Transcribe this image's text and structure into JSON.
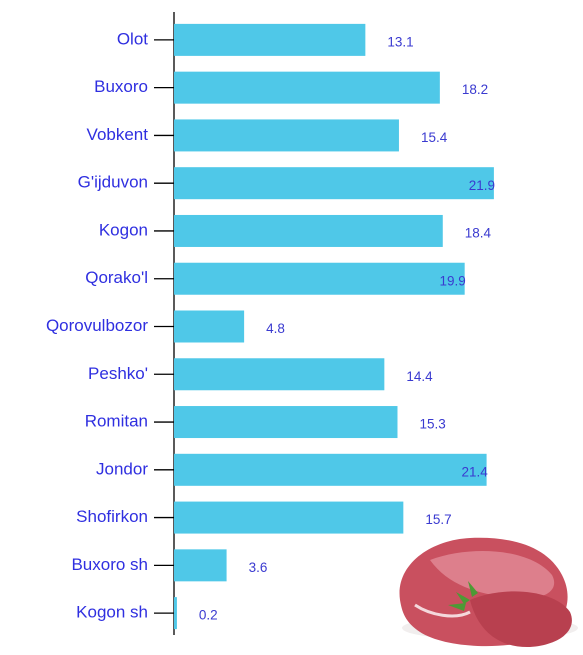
{
  "chart_data": {
    "type": "bar",
    "orientation": "horizontal",
    "categories": [
      "Olot",
      "Buxoro",
      "Vobkent",
      "G'ijduvon",
      "Kogon",
      "Qorako'l",
      "Qorovulbozor",
      "Peshko'",
      "Romitan",
      "Jondor",
      "Shofirkon",
      "Buxoro sh",
      "Kogon sh"
    ],
    "values": [
      13.1,
      18.2,
      15.4,
      21.9,
      18.4,
      19.9,
      4.8,
      14.4,
      15.3,
      21.4,
      15.7,
      3.6,
      0.2
    ],
    "color": "#4fc8e8",
    "xlim": [
      0,
      28
    ]
  }
}
